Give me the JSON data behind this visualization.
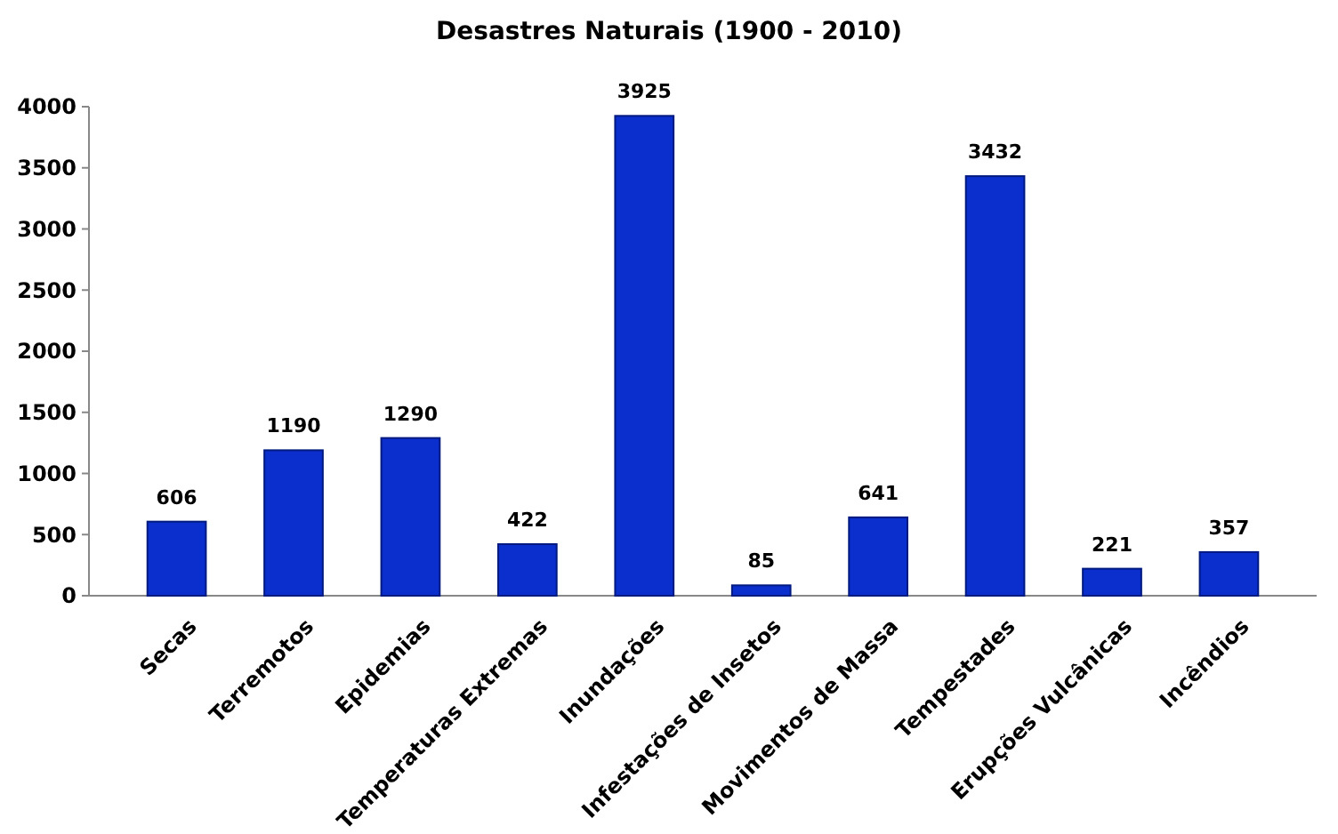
{
  "chart_data": {
    "type": "bar",
    "title": "Desastres Naturais (1900 - 2010)",
    "categories": [
      "Secas",
      "Terremotos",
      "Epidemias",
      "Temperaturas Extremas",
      "Inundações",
      "Infestações de Insetos",
      "Movimentos de Massa",
      "Tempestades",
      "Erupções Vulcânicas",
      "Incêndios"
    ],
    "values": [
      606,
      1190,
      1290,
      422,
      3925,
      85,
      641,
      3432,
      221,
      357
    ],
    "color": "#0a2fcc",
    "ylim": [
      0,
      4000
    ],
    "yticks": [
      0,
      500,
      1000,
      1500,
      2000,
      2500,
      3000,
      3500,
      4000
    ],
    "data_labels": true,
    "grid": false
  }
}
